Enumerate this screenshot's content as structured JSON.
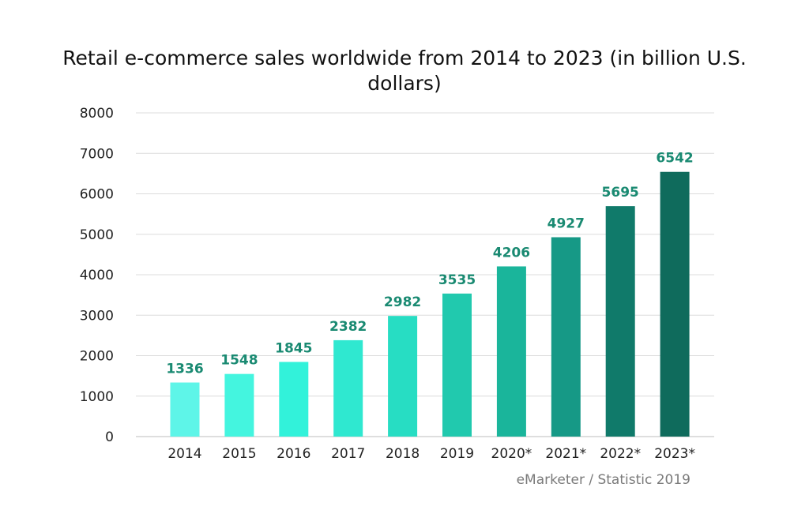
{
  "chart_data": {
    "type": "bar",
    "title": "Retail e-commerce sales worldwide from 2014 to 2023 (in billion U.S. dollars)",
    "categories": [
      "2014",
      "2015",
      "2016",
      "2017",
      "2018",
      "2019",
      "2020*",
      "2021*",
      "2022*",
      "2023*"
    ],
    "values": [
      1336,
      1548,
      1845,
      2382,
      2982,
      3535,
      4206,
      4927,
      5695,
      6542
    ],
    "data_labels": [
      "1336",
      "1548",
      "1845",
      "2382",
      "2982",
      "3535",
      "4206",
      "4927",
      "5695",
      "6542"
    ],
    "ylim": [
      0,
      8000
    ],
    "yticks": [
      "0",
      "1000",
      "2000",
      "3000",
      "4000",
      "5000",
      "6000",
      "7000",
      "8000"
    ],
    "grid": true,
    "legend": "none",
    "colors": [
      "#5ef5e8",
      "#44f5df",
      "#32f2da",
      "#2fe8d0",
      "#27ddc3",
      "#21c9ae",
      "#1ab59b",
      "#169986",
      "#107a6a",
      "#0f6b5c"
    ],
    "label_color": "#1a8a72"
  },
  "source": "eMarketer / Statistic 2019"
}
